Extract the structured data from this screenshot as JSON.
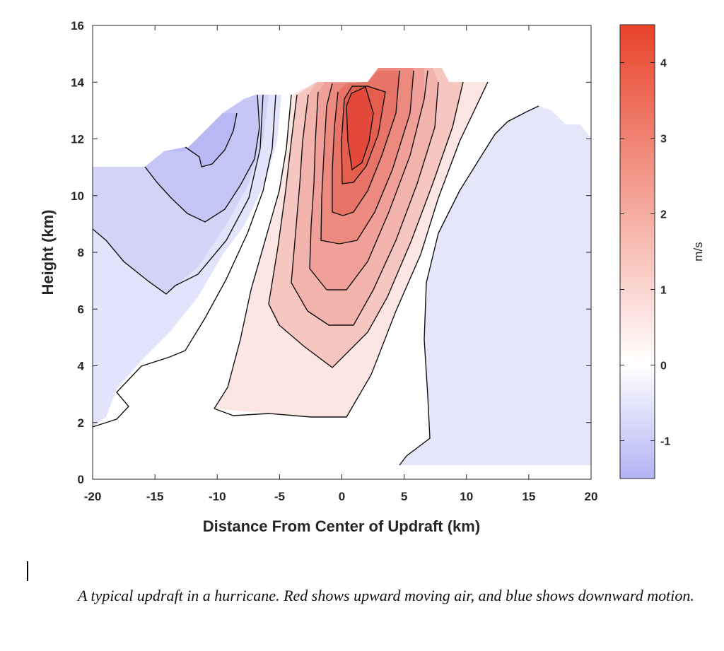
{
  "chart_data": {
    "type": "contour",
    "xlabel": "Distance From Center of Updraft (km)",
    "ylabel": "Height (km)",
    "xlim": [
      -20,
      20
    ],
    "ylim": [
      0,
      16
    ],
    "xticks": [
      -20,
      -15,
      -10,
      -5,
      0,
      5,
      10,
      15,
      20
    ],
    "yticks": [
      0,
      2,
      4,
      6,
      8,
      10,
      12,
      14,
      16
    ],
    "grid": false,
    "colorbar": {
      "label": "m/s",
      "range": [
        -1.5,
        4.5
      ],
      "ticks": [
        -1,
        0,
        1,
        2,
        3,
        4
      ],
      "colors": {
        "low": "#b3b3f5",
        "mid": "#ffffff",
        "high": "#e8432a"
      }
    },
    "updraft": {
      "description_levels": [
        0.25,
        0.75,
        1.25,
        1.75,
        2.25,
        2.75,
        3.25,
        3.75
      ],
      "max_value": 4.0,
      "max_location": {
        "x": 1.5,
        "y": 12.0
      },
      "top_height": 14.5,
      "base_height": 2.3
    },
    "downdraft": {
      "regions": [
        {
          "name": "left",
          "x_range": [
            -20,
            -5
          ],
          "y_range": [
            1.8,
            13.5
          ],
          "min_value": -1.0
        },
        {
          "name": "right",
          "x_range": [
            4.5,
            20
          ],
          "y_range": [
            0.5,
            13.0
          ],
          "min_value": -0.25
        }
      ]
    }
  },
  "caption": {
    "text": "A typical updraft in a hurricane.  Red shows upward moving air, and blue shows downward motion."
  }
}
